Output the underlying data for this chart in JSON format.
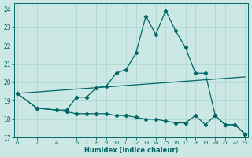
{
  "xlabel": "Humidex (Indice chaleur)",
  "bg_color": "#cce8e4",
  "grid_color": "#b0d8d4",
  "line_color": "#006666",
  "xlim": [
    -0.3,
    23.3
  ],
  "ylim": [
    17.0,
    24.3
  ],
  "xtick_pos": [
    0,
    2,
    4,
    6,
    7,
    8,
    9,
    10,
    11,
    12,
    13,
    14,
    15,
    16,
    17,
    18,
    19,
    20,
    21,
    22,
    23
  ],
  "xtick_labels": [
    "0",
    "2",
    "4",
    "6",
    "7",
    "8",
    "9",
    "10",
    "11",
    "12",
    "13",
    "14",
    "15",
    "16",
    "17",
    "18",
    "19",
    "20",
    "21",
    "22",
    "23"
  ],
  "ytick_pos": [
    17,
    18,
    19,
    20,
    21,
    22,
    23,
    24
  ],
  "ytick_labels": [
    "17",
    "18",
    "19",
    "20",
    "21",
    "22",
    "23",
    "24"
  ],
  "curve1_x": [
    0,
    2,
    4,
    5,
    6,
    7,
    8,
    9,
    10,
    11,
    12,
    13,
    14,
    15,
    16,
    17,
    18,
    19,
    20,
    21,
    22,
    23
  ],
  "curve1_y": [
    19.4,
    18.6,
    18.5,
    18.5,
    19.2,
    19.2,
    19.7,
    19.8,
    20.5,
    20.7,
    21.6,
    23.6,
    22.6,
    23.9,
    22.8,
    21.9,
    20.5,
    20.5,
    18.2,
    17.7,
    17.7,
    17.2
  ],
  "curve2_x": [
    0,
    23
  ],
  "curve2_y": [
    19.4,
    20.3
  ],
  "curve3_x": [
    0,
    2,
    4,
    5,
    6,
    7,
    8,
    9,
    10,
    11,
    12,
    13,
    14,
    15,
    16,
    17,
    18,
    19,
    20,
    21,
    22,
    23
  ],
  "curve3_y": [
    19.4,
    18.6,
    18.5,
    18.4,
    18.3,
    18.3,
    18.3,
    18.3,
    18.2,
    18.2,
    18.1,
    18.0,
    18.0,
    17.9,
    17.8,
    17.8,
    18.2,
    17.7,
    18.2,
    17.7,
    17.7,
    17.2
  ]
}
